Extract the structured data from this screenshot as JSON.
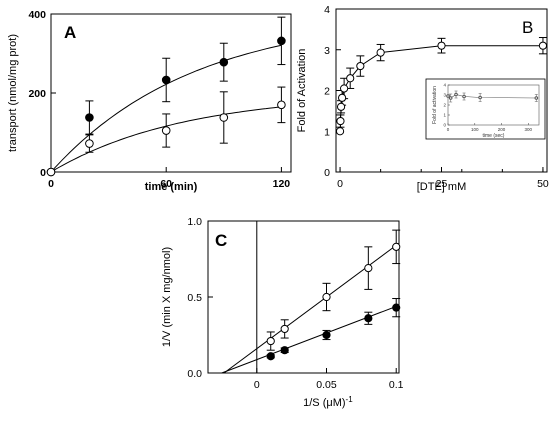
{
  "chart_data": [
    {
      "panel": "A",
      "type": "scatter",
      "xlabel": "time (min)",
      "ylabel": "transport (nmol/mg prot)",
      "xlim": [
        0,
        125
      ],
      "ylim": [
        0,
        400
      ],
      "xticks": [
        0,
        60,
        120
      ],
      "yticks": [
        0,
        200,
        400
      ],
      "fit": "saturating",
      "series": [
        {
          "marker": "filled",
          "x": [
            0,
            20,
            60,
            90,
            120
          ],
          "y": [
            0,
            138,
            233,
            278,
            332
          ],
          "err": [
            0,
            42,
            55,
            48,
            60
          ],
          "fit_ymax": 400,
          "fit_k": 0.0135
        },
        {
          "marker": "open",
          "x": [
            0,
            20,
            60,
            90,
            120
          ],
          "y": [
            0,
            72,
            105,
            138,
            170
          ],
          "err": [
            0,
            22,
            42,
            65,
            45
          ],
          "fit_ymax": 200,
          "fit_k": 0.0145
        }
      ]
    },
    {
      "panel": "B",
      "type": "scatter",
      "xlabel": "[DTE] mM",
      "ylabel": "Fold of Activation",
      "xlim": [
        -1,
        51
      ],
      "ylim": [
        0,
        4
      ],
      "xticks": [
        0,
        25,
        50
      ],
      "xticks_minor": [
        0,
        10,
        20,
        30,
        40,
        50
      ],
      "yticks": [
        0,
        1,
        2,
        3,
        4
      ],
      "series": [
        {
          "marker": "open",
          "x": [
            0,
            0.1,
            0.25,
            0.5,
            1,
            2.5,
            5,
            10,
            25,
            50
          ],
          "y": [
            1.0,
            1.25,
            1.6,
            1.82,
            2.05,
            2.3,
            2.6,
            2.93,
            3.1,
            3.1
          ],
          "err": [
            0,
            0.15,
            0.15,
            0.18,
            0.25,
            0.25,
            0.25,
            0.2,
            0.18,
            0.2
          ]
        }
      ],
      "inset": {
        "xlabel": "time (sec)",
        "ylabel": "Fold of activation",
        "xlim": [
          0,
          340
        ],
        "ylim": [
          0,
          4
        ],
        "xticks": [
          0,
          100,
          200,
          300
        ],
        "yticks": [
          0,
          1,
          2,
          3,
          4
        ],
        "x": [
          0,
          10,
          30,
          60,
          120,
          330
        ],
        "y": [
          2.9,
          2.7,
          3.05,
          2.85,
          2.75,
          2.7
        ],
        "err": [
          0,
          0.4,
          0.35,
          0.35,
          0.4,
          0.35
        ]
      }
    },
    {
      "panel": "C",
      "type": "scatter",
      "xlabel": "1/S (μM)",
      "xlabel_sup": "-1",
      "ylabel": "1/V (min X mg/nmol)",
      "xlim": [
        -0.035,
        0.102
      ],
      "ylim": [
        0,
        1.0
      ],
      "xticks": [
        0,
        0.05,
        0.1
      ],
      "xtick_labels": [
        "0",
        "0.05",
        "0.1"
      ],
      "yticks": [
        0,
        0.5,
        1.0
      ],
      "ytick_labels": [
        "0.0",
        "0.5",
        "1.0"
      ],
      "series": [
        {
          "marker": "open",
          "x": [
            0.01,
            0.02,
            0.05,
            0.08,
            0.1
          ],
          "y": [
            0.21,
            0.29,
            0.5,
            0.69,
            0.83
          ],
          "err": [
            0.06,
            0.06,
            0.09,
            0.14,
            0.11
          ],
          "fit_slope": 6.8,
          "fit_intercept": 0.16
        },
        {
          "marker": "filled",
          "x": [
            0.01,
            0.02,
            0.05,
            0.08,
            0.1
          ],
          "y": [
            0.11,
            0.15,
            0.25,
            0.36,
            0.43
          ],
          "err": [
            0.01,
            0.015,
            0.03,
            0.04,
            0.06
          ],
          "fit_slope": 3.5,
          "fit_intercept": 0.088
        }
      ]
    }
  ]
}
